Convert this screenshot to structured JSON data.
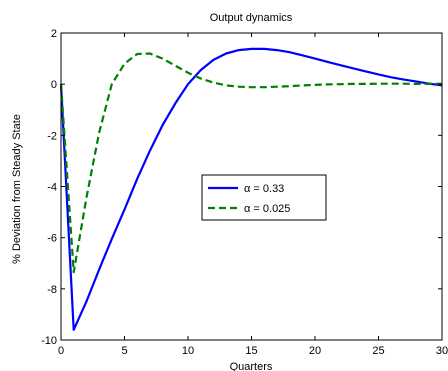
{
  "chart_data": {
    "type": "line",
    "title": "Output dynamics",
    "xlabel": "Quarters",
    "ylabel": "% Deviation from Steady State",
    "xlim": [
      0,
      30
    ],
    "ylim": [
      -10,
      2
    ],
    "xticks": [
      0,
      5,
      10,
      15,
      20,
      25,
      30
    ],
    "yticks": [
      2,
      0,
      -2,
      -4,
      -6,
      -8,
      -10
    ],
    "grid": false,
    "legend_position": "center-right",
    "series": [
      {
        "name": "α = 0.33",
        "color": "#0000ff",
        "style": "solid",
        "x": [
          0,
          1,
          2,
          3,
          4,
          5,
          6,
          7,
          8,
          9,
          10,
          11,
          12,
          13,
          14,
          15,
          16,
          17,
          18,
          19,
          20,
          21,
          22,
          23,
          24,
          25,
          26,
          27,
          28,
          29,
          30
        ],
        "y": [
          0,
          -9.6,
          -8.5,
          -7.25,
          -6.05,
          -4.9,
          -3.7,
          -2.6,
          -1.6,
          -0.75,
          0,
          0.55,
          0.95,
          1.2,
          1.33,
          1.38,
          1.38,
          1.33,
          1.25,
          1.13,
          1.0,
          0.87,
          0.74,
          0.62,
          0.5,
          0.38,
          0.27,
          0.18,
          0.1,
          0.02,
          -0.05
        ]
      },
      {
        "name": "α = 0.025",
        "color": "#008000",
        "style": "dashed",
        "x": [
          0,
          1,
          2,
          3,
          4,
          5,
          6,
          7,
          8,
          9,
          10,
          11,
          12,
          13,
          14,
          15,
          16,
          17,
          18,
          19,
          20,
          21,
          22,
          23,
          24,
          25,
          26,
          27,
          28,
          29,
          30
        ],
        "y": [
          0,
          -7.35,
          -4.45,
          -1.9,
          0,
          0.8,
          1.18,
          1.2,
          1.0,
          0.72,
          0.45,
          0.22,
          0.06,
          -0.05,
          -0.1,
          -0.12,
          -0.12,
          -0.1,
          -0.08,
          -0.05,
          -0.03,
          -0.01,
          0.0,
          0.01,
          0.01,
          0.02,
          0.02,
          0.02,
          0.01,
          0.01,
          0.01
        ]
      }
    ]
  }
}
